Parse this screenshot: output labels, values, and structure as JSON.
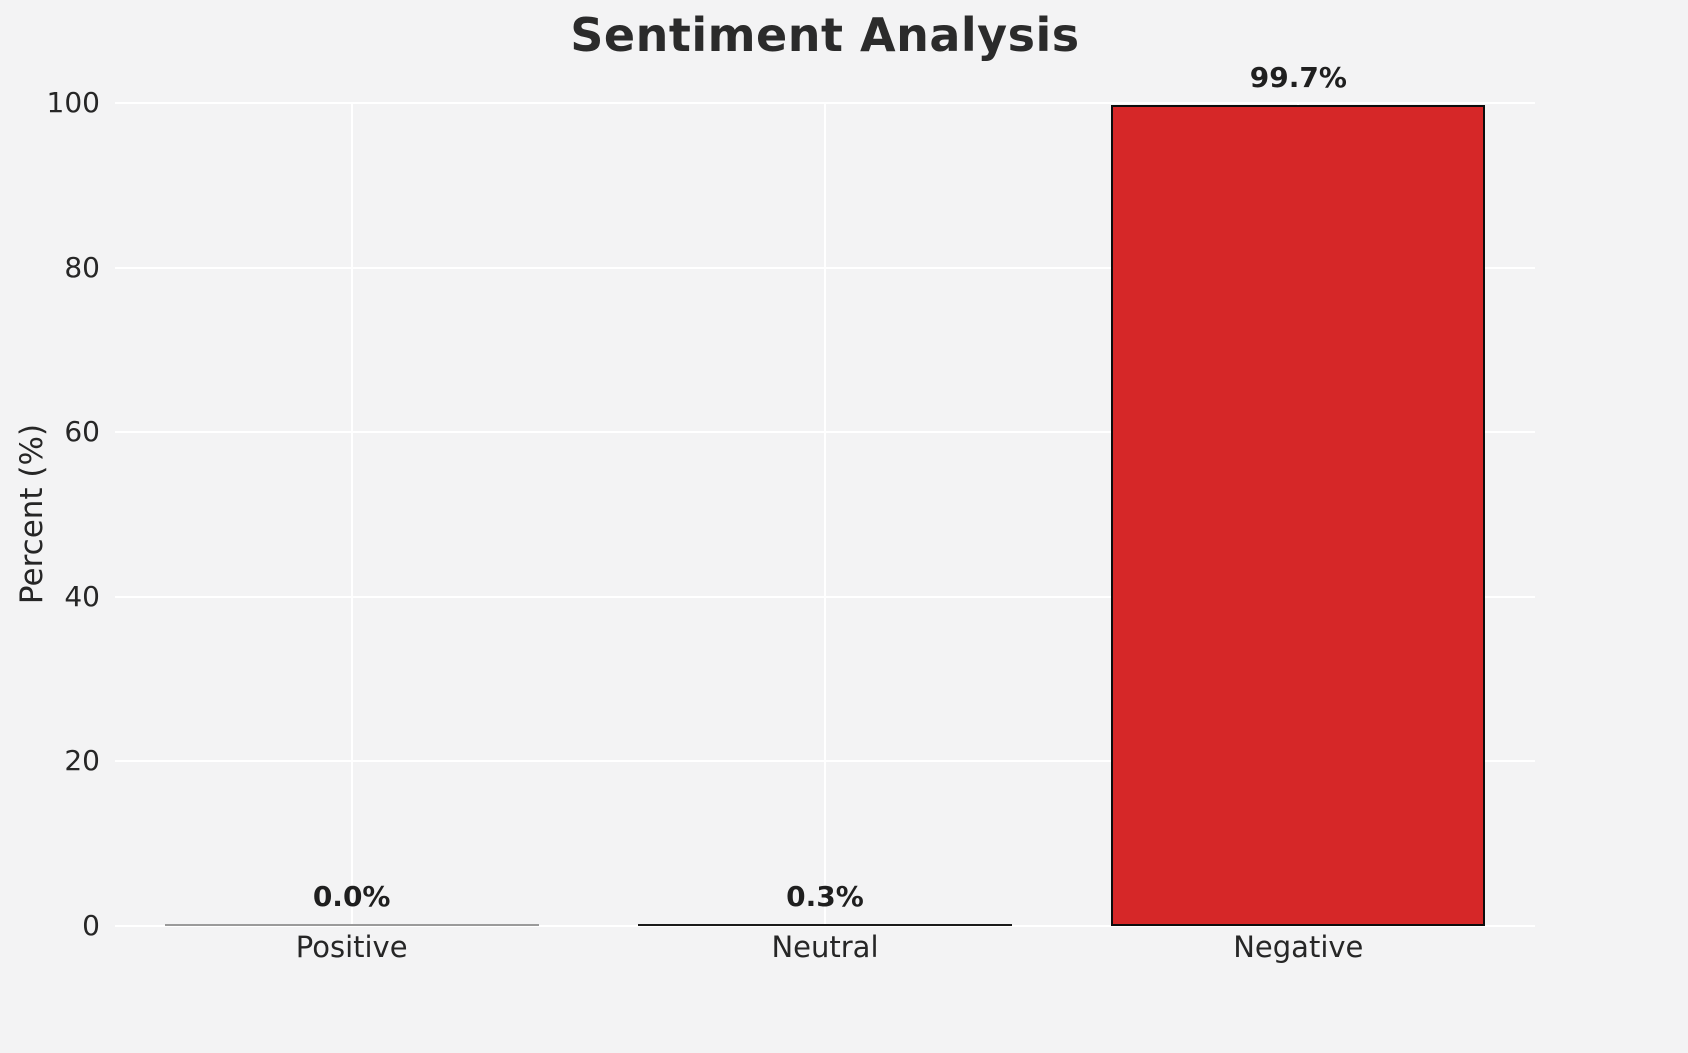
{
  "chart_data": {
    "type": "bar",
    "title": "Sentiment Analysis",
    "xlabel": "",
    "ylabel": "Percent (%)",
    "categories": [
      "Positive",
      "Neutral",
      "Negative"
    ],
    "values": [
      0.0,
      0.3,
      99.7
    ],
    "value_labels": [
      "0.0%",
      "0.3%",
      "99.7%"
    ],
    "yticks": [
      0,
      20,
      40,
      60,
      80,
      100
    ],
    "ylim": [
      0,
      100
    ],
    "grid": true,
    "legend": "none",
    "colors": {
      "figure_background": "#f3f3f4",
      "gridline": "#ffffff",
      "bar_fills": [
        "#9a9a9a",
        "#1a1a1a",
        "#d62728"
      ],
      "bar_edge": "#0d0d0d",
      "text": "#262626",
      "title_text": "#2b2b2b"
    }
  }
}
